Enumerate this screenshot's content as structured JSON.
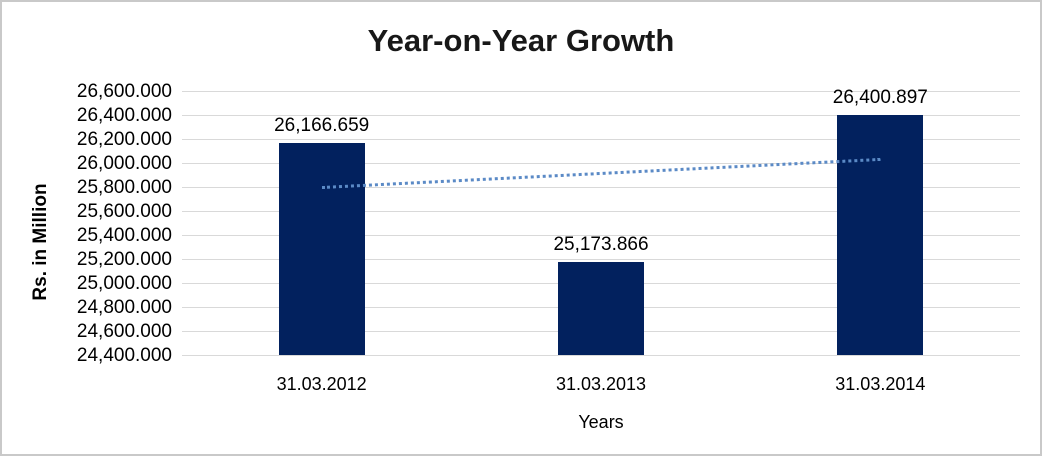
{
  "chart_data": {
    "type": "bar",
    "title": "Year-on-Year Growth",
    "xlabel": "Years",
    "ylabel": "Rs. in Million",
    "categories": [
      "31.03.2012",
      "31.03.2013",
      "31.03.2014"
    ],
    "values": [
      26166.659,
      25173.866,
      26400.897
    ],
    "data_labels": [
      "26,166.659",
      "25,173.866",
      "26,400.897"
    ],
    "y_ticks": [
      "26,600.000",
      "26,400.000",
      "26,200.000",
      "26,000.000",
      "25,800.000",
      "25,600.000",
      "25,400.000",
      "25,200.000",
      "25,000.000",
      "24,800.000",
      "24,600.000",
      "24,400.000"
    ],
    "ylim": [
      24400,
      26600
    ],
    "y_tick_step": 200,
    "grid": true,
    "legend": "none",
    "bar_color": "#02215E",
    "gridline_color": "#D9D9D9",
    "trendline": {
      "type": "linear",
      "style": "dotted",
      "color": "#5B8AC6"
    }
  }
}
